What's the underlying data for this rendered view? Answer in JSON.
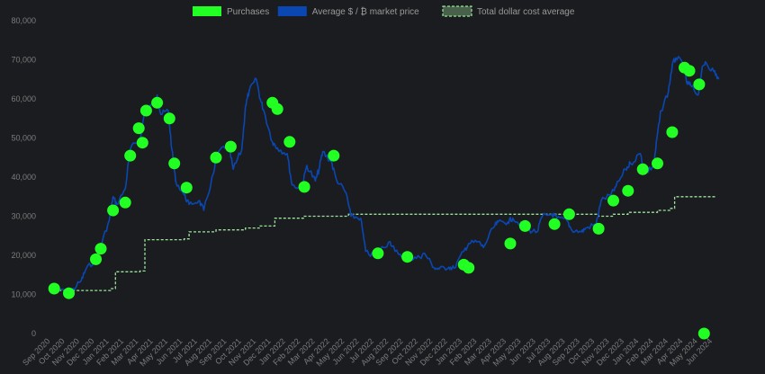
{
  "chart_data": {
    "type": "line",
    "legend": {
      "placement": "top-center",
      "entries": [
        {
          "name": "Purchases",
          "color": "#22ff22",
          "shape": "box"
        },
        {
          "name": "Average $ / ₿ market price",
          "color": "#0a47b3",
          "shape": "box"
        },
        {
          "name": "Total dollar cost average",
          "color": "#9be39b",
          "shape": "dashed-box"
        }
      ]
    },
    "ylim": [
      0,
      80000
    ],
    "yticks": [
      0,
      10000,
      20000,
      30000,
      40000,
      50000,
      60000,
      70000,
      80000
    ],
    "ytick_labels": [
      "0",
      "10,000",
      "20,000",
      "30,000",
      "40,000",
      "50,000",
      "60,000",
      "70,000",
      "80,000"
    ],
    "xlabels": [
      "Sep 2020",
      "Oct 2020",
      "Nov 2020",
      "Dec 2020",
      "Jan 2021",
      "Feb 2021",
      "Mar 2021",
      "Apr 2021",
      "May 2021",
      "Jun 2021",
      "Jul 2021",
      "Aug 2021",
      "Sep 2021",
      "Oct 2021",
      "Nov 2021",
      "Dec 2021",
      "Jan 2022",
      "Feb 2022",
      "Mar 2022",
      "Apr 2022",
      "May 2022",
      "Jun 2022",
      "Jul 2022",
      "Aug 2022",
      "Sep 2022",
      "Oct 2022",
      "Nov 2022",
      "Dec 2022",
      "Jan 2023",
      "Feb 2023",
      "Mar 2023",
      "Apr 2023",
      "May 2023",
      "Jun 2023",
      "Jul 2023",
      "Aug 2023",
      "Sep 2023",
      "Oct 2023",
      "Nov 2023",
      "Dec 2023",
      "Jan 2024",
      "Feb 2024",
      "Mar 2024",
      "Apr 2024",
      "May 2024",
      "Jun 2024"
    ],
    "grid": false,
    "colors": {
      "background": "#1b1c1f",
      "price_line": "#0a47b3",
      "purchase_marker": "#22ff22",
      "dca_line": "#9be39b"
    },
    "series": [
      {
        "name": "Average $ / ₿ market price",
        "type": "line",
        "points": [
          [
            "Sep 2020",
            10500
          ],
          [
            "Oct 2020",
            11200
          ],
          [
            "Oct 2020",
            10800
          ],
          [
            "Nov 2020",
            13500
          ],
          [
            "Nov 2020",
            16500
          ],
          [
            "Dec 2020",
            19000
          ],
          [
            "Dec 2020",
            22500
          ],
          [
            "Jan 2021",
            29000
          ],
          [
            "Jan 2021",
            35000
          ],
          [
            "Jan 2021",
            33000
          ],
          [
            "Feb 2021",
            37000
          ],
          [
            "Feb 2021",
            47000
          ],
          [
            "Mar 2021",
            50000
          ],
          [
            "Mar 2021",
            57000
          ],
          [
            "Apr 2021",
            58500
          ],
          [
            "Apr 2021",
            61000
          ],
          [
            "Apr 2021",
            56000
          ],
          [
            "May 2021",
            57000
          ],
          [
            "May 2021",
            47000
          ],
          [
            "May 2021",
            39000
          ],
          [
            "Jun 2021",
            35500
          ],
          [
            "Jun 2021",
            33000
          ],
          [
            "Jul 2021",
            34000
          ],
          [
            "Jul 2021",
            31500
          ],
          [
            "Aug 2021",
            41000
          ],
          [
            "Aug 2021",
            46500
          ],
          [
            "Sep 2021",
            48500
          ],
          [
            "Sep 2021",
            42000
          ],
          [
            "Oct 2021",
            47000
          ],
          [
            "Oct 2021",
            58000
          ],
          [
            "Oct 2021",
            62000
          ],
          [
            "Nov 2021",
            65000
          ],
          [
            "Nov 2021",
            60000
          ],
          [
            "Nov 2021",
            57000
          ],
          [
            "Dec 2021",
            49000
          ],
          [
            "Dec 2021",
            47500
          ],
          [
            "Jan 2022",
            46000
          ],
          [
            "Jan 2022",
            38000
          ],
          [
            "Feb 2022",
            37000
          ],
          [
            "Feb 2022",
            43000
          ],
          [
            "Mar 2022",
            39000
          ],
          [
            "Mar 2022",
            42000
          ],
          [
            "Mar 2022",
            46500
          ],
          [
            "Apr 2022",
            44000
          ],
          [
            "Apr 2022",
            39500
          ],
          [
            "May 2022",
            36000
          ],
          [
            "May 2022",
            30000
          ],
          [
            "Jun 2022",
            29500
          ],
          [
            "Jun 2022",
            21000
          ],
          [
            "Jul 2022",
            19500
          ],
          [
            "Jul 2022",
            21500
          ],
          [
            "Aug 2022",
            23500
          ],
          [
            "Aug 2022",
            21000
          ],
          [
            "Sep 2022",
            19800
          ],
          [
            "Sep 2022",
            19000
          ],
          [
            "Oct 2022",
            19500
          ],
          [
            "Oct 2022",
            20500
          ],
          [
            "Nov 2022",
            16800
          ],
          [
            "Nov 2022",
            16500
          ],
          [
            "Dec 2022",
            17000
          ],
          [
            "Dec 2022",
            16700
          ],
          [
            "Jan 2023",
            21000
          ],
          [
            "Jan 2023",
            23000
          ],
          [
            "Feb 2023",
            23500
          ],
          [
            "Feb 2023",
            22000
          ],
          [
            "Mar 2023",
            27000
          ],
          [
            "Mar 2023",
            28500
          ],
          [
            "Apr 2023",
            28500
          ],
          [
            "Apr 2023",
            29500
          ],
          [
            "May 2023",
            27500
          ],
          [
            "May 2023",
            26500
          ],
          [
            "Jun 2023",
            26000
          ],
          [
            "Jun 2023",
            30000
          ],
          [
            "Jul 2023",
            30500
          ],
          [
            "Jul 2023",
            29500
          ],
          [
            "Aug 2023",
            29000
          ],
          [
            "Aug 2023",
            26500
          ],
          [
            "Sep 2023",
            26000
          ],
          [
            "Sep 2023",
            27000
          ],
          [
            "Oct 2023",
            28000
          ],
          [
            "Oct 2023",
            34000
          ],
          [
            "Nov 2023",
            35500
          ],
          [
            "Nov 2023",
            37500
          ],
          [
            "Dec 2023",
            42000
          ],
          [
            "Dec 2023",
            43500
          ],
          [
            "Jan 2024",
            46000
          ],
          [
            "Jan 2024",
            41000
          ],
          [
            "Feb 2024",
            43000
          ],
          [
            "Feb 2024",
            51000
          ],
          [
            "Feb 2024",
            57000
          ],
          [
            "Mar 2024",
            62000
          ],
          [
            "Mar 2024",
            68500
          ],
          [
            "Mar 2024",
            70500
          ],
          [
            "Apr 2024",
            69000
          ],
          [
            "Apr 2024",
            64000
          ],
          [
            "Apr 2024",
            63500
          ],
          [
            "May 2024",
            61000
          ],
          [
            "May 2024",
            67000
          ],
          [
            "May 2024",
            69500
          ],
          [
            "Jun 2024",
            67000
          ],
          [
            "Jun 2024",
            65000
          ]
        ]
      },
      {
        "name": "Total dollar cost average",
        "type": "step",
        "points": [
          [
            "Sep 2020",
            11000
          ],
          [
            "Jan 2021",
            11500
          ],
          [
            "Jan 2021",
            15800
          ],
          [
            "Mar 2021",
            16000
          ],
          [
            "Mar 2021",
            24000
          ],
          [
            "Jun 2021",
            24200
          ],
          [
            "Jun 2021",
            26000
          ],
          [
            "Aug 2021",
            26500
          ],
          [
            "Oct 2021",
            27000
          ],
          [
            "Nov 2021",
            27500
          ],
          [
            "Dec 2021",
            29500
          ],
          [
            "Feb 2022",
            30000
          ],
          [
            "May 2022",
            30500
          ],
          [
            "Oct 2023",
            30000
          ],
          [
            "Nov 2023",
            30500
          ],
          [
            "Dec 2023",
            31000
          ],
          [
            "Feb 2024",
            31500
          ],
          [
            "Mar 2024",
            32000
          ],
          [
            "Mar 2024",
            35000
          ],
          [
            "Jun 2024",
            35000
          ]
        ]
      },
      {
        "name": "Purchases",
        "type": "scatter",
        "points": [
          [
            "Sep 2020",
            11500
          ],
          [
            "Oct 2020",
            10300
          ],
          [
            "Dec 2020",
            19000
          ],
          [
            "Dec 2020",
            21700
          ],
          [
            "Jan 2021",
            31500
          ],
          [
            "Feb 2021",
            33500
          ],
          [
            "Feb 2021",
            45500
          ],
          [
            "Mar 2021",
            52500
          ],
          [
            "Mar 2021",
            48800
          ],
          [
            "Mar 2021",
            57000
          ],
          [
            "Apr 2021",
            59000
          ],
          [
            "May 2021",
            55000
          ],
          [
            "May 2021",
            43500
          ],
          [
            "Jun 2021",
            37300
          ],
          [
            "Aug 2021",
            45000
          ],
          [
            "Sep 2021",
            47800
          ],
          [
            "Dec 2021",
            59000
          ],
          [
            "Dec 2021",
            57400
          ],
          [
            "Jan 2022",
            49000
          ],
          [
            "Feb 2022",
            37500
          ],
          [
            "Apr 2022",
            45500
          ],
          [
            "Jul 2022",
            20500
          ],
          [
            "Sep 2022",
            19600
          ],
          [
            "Jan 2023",
            17600
          ],
          [
            "Jan 2023",
            16800
          ],
          [
            "Apr 2023",
            23000
          ],
          [
            "May 2023",
            27500
          ],
          [
            "Jul 2023",
            28000
          ],
          [
            "Aug 2023",
            30500
          ],
          [
            "Oct 2023",
            26800
          ],
          [
            "Nov 2023",
            34000
          ],
          [
            "Dec 2023",
            36500
          ],
          [
            "Jan 2024",
            42000
          ],
          [
            "Feb 2024",
            43500
          ],
          [
            "Mar 2024",
            51500
          ],
          [
            "Apr 2024",
            68000
          ],
          [
            "Apr 2024",
            67200
          ],
          [
            "May 2024",
            63700
          ],
          [
            "May 2024",
            0
          ]
        ]
      }
    ]
  }
}
